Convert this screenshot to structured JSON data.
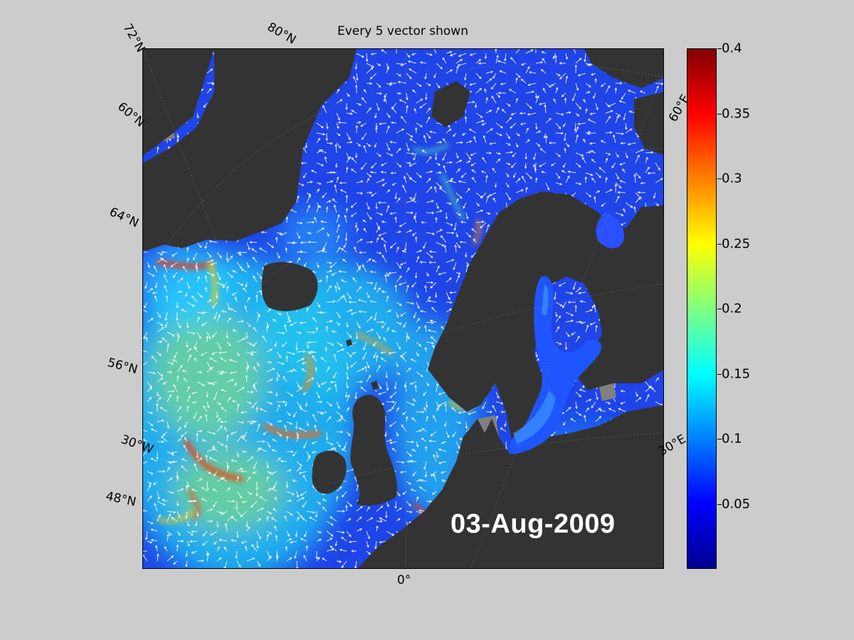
{
  "title": "Every 5 vector shown",
  "date": "03-Aug-2009",
  "labels": {
    "lat72": "72°N",
    "lat80": "80°N",
    "lat60": "60°N",
    "lat64": "64°N",
    "lat56": "56°N",
    "lat48": "48°N",
    "lon30w": "30°W",
    "lon0": "0°",
    "lon30e": "30°E",
    "lon60e": "60°E"
  },
  "colorbar": {
    "min": 0,
    "max": 0.4,
    "colormap": "jet",
    "ticks": [
      "0.4",
      "0.35",
      "0.3",
      "0.25",
      "0.2",
      "0.15",
      "0.1",
      "0.05"
    ],
    "tick_values": [
      0.4,
      0.35,
      0.3,
      0.25,
      0.2,
      0.15,
      0.1,
      0.05
    ]
  },
  "colors": {
    "background": "#cccccc",
    "land": "#333333",
    "ice": "#808080",
    "vectors": "#ffffff"
  }
}
